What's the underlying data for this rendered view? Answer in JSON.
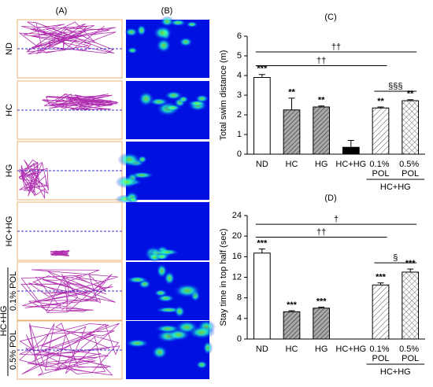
{
  "panel_labels": [
    "(A)",
    "(B)",
    "(C)",
    "(D)"
  ],
  "row_labels": [
    "ND",
    "HC",
    "HG",
    "HC+HG",
    "0.1% POL",
    "0.5% POL"
  ],
  "row_group_label": "HC+HG",
  "chart_data": [
    {
      "type": "bar",
      "ylabel": "Total swim distance (m)",
      "categories": [
        "ND",
        "HC",
        "HG",
        "HC+HG",
        "0.1% POL",
        "0.5% POL"
      ],
      "values": [
        3.9,
        2.25,
        2.4,
        0.35,
        2.35,
        2.72
      ],
      "errors": [
        0.15,
        0.6,
        0.05,
        0.35,
        0.05,
        0.05
      ],
      "value_labels": [
        "***",
        "**",
        "**",
        null,
        "**",
        "**"
      ],
      "patterns": [
        "white",
        "dense",
        "dense",
        "black",
        "diag",
        "cross"
      ],
      "ylim": [
        0,
        6
      ],
      "yticks": [
        0,
        1,
        2,
        3,
        4,
        5,
        6
      ],
      "brackets": [
        {
          "label": "††",
          "from": 0,
          "to": 5,
          "y": 5.2
        },
        {
          "label": "††",
          "from": 0,
          "to": 4,
          "y": 4.5
        },
        {
          "label": "§§§",
          "from": 4,
          "to": 5,
          "y": 3.2
        }
      ],
      "group": {
        "label": "HC+HG",
        "from": 4,
        "to": 5
      }
    },
    {
      "type": "bar",
      "ylabel": "Stay time in top half (sec)",
      "categories": [
        "ND",
        "HC",
        "HG",
        "HC+HG",
        "0.1% POL",
        "0.5% POL"
      ],
      "values": [
        16.7,
        5.3,
        6.0,
        0,
        10.5,
        13.0
      ],
      "errors": [
        0.8,
        0.2,
        0.2,
        0,
        0.4,
        0.6
      ],
      "value_labels": [
        "***",
        "***",
        "***",
        null,
        "***",
        "***"
      ],
      "patterns": [
        "white",
        "dense",
        "dense",
        "black",
        "diag",
        "cross"
      ],
      "ylim": [
        0,
        24
      ],
      "yticks": [
        0,
        4,
        8,
        12,
        16,
        20,
        24
      ],
      "brackets": [
        {
          "label": "†",
          "from": 0,
          "to": 5,
          "y": 22.3
        },
        {
          "label": "††",
          "from": 0,
          "to": 4,
          "y": 19.8
        },
        {
          "label": "§",
          "from": 4,
          "to": 5,
          "y": 14.8
        }
      ],
      "group": {
        "label": "HC+HG",
        "from": 4,
        "to": 5
      }
    }
  ]
}
